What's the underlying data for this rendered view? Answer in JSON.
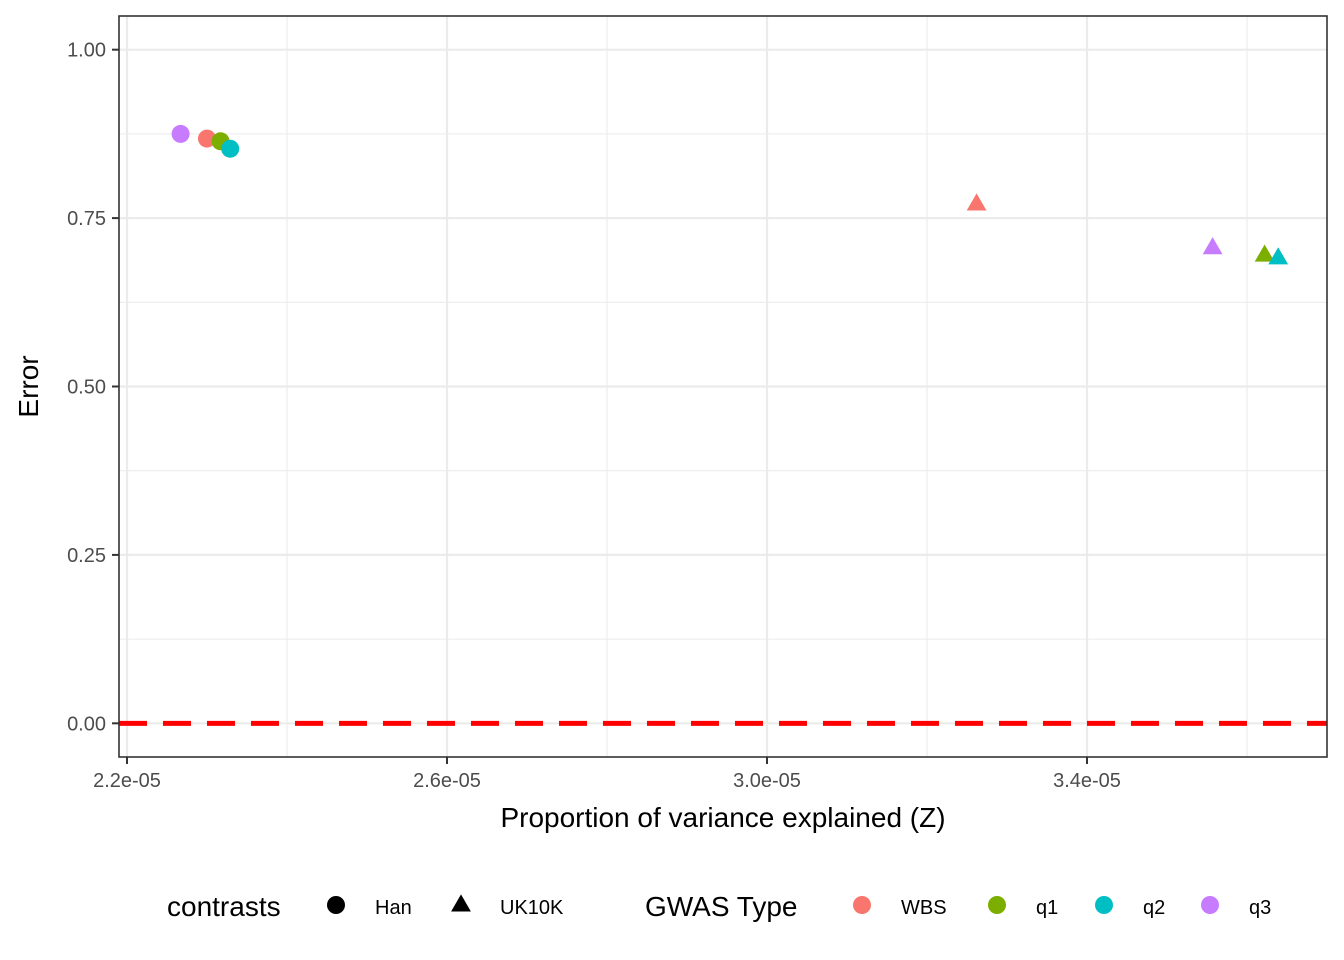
{
  "chart_data": {
    "type": "scatter",
    "title": "",
    "xlabel": "Proportion of variance explained (Z)",
    "ylabel": "Error",
    "xlim": [
      2.19e-05,
      3.7e-05
    ],
    "ylim": [
      -0.05,
      1.05
    ],
    "x_ticks": [
      2.2e-05,
      2.6e-05,
      3e-05,
      3.4e-05
    ],
    "x_tick_labels": [
      "2.2e-05",
      "2.6e-05",
      "3.0e-05",
      "3.4e-05"
    ],
    "x_minor_ticks": [
      2.4e-05,
      2.8e-05,
      3.2e-05,
      3.6e-05
    ],
    "y_ticks": [
      0,
      0.25,
      0.5,
      0.75,
      1
    ],
    "y_tick_labels": [
      "0.00",
      "0.25",
      "0.50",
      "0.75",
      "1.00"
    ],
    "y_minor_ticks": [
      0.125,
      0.375,
      0.625,
      0.875
    ],
    "grid": true,
    "reference_line": {
      "y": 0,
      "color": "#ff0000",
      "style": "dashed"
    },
    "series": [
      {
        "contrast": "Han",
        "gwas_type": "q3",
        "x": 2.267e-05,
        "y": 0.875
      },
      {
        "contrast": "Han",
        "gwas_type": "WBS",
        "x": 2.3e-05,
        "y": 0.868
      },
      {
        "contrast": "Han",
        "gwas_type": "q1",
        "x": 2.317e-05,
        "y": 0.864
      },
      {
        "contrast": "Han",
        "gwas_type": "q2",
        "x": 2.329e-05,
        "y": 0.853
      },
      {
        "contrast": "UK10K",
        "gwas_type": "WBS",
        "x": 3.262e-05,
        "y": 0.771
      },
      {
        "contrast": "UK10K",
        "gwas_type": "q3",
        "x": 3.557e-05,
        "y": 0.706
      },
      {
        "contrast": "UK10K",
        "gwas_type": "q1",
        "x": 3.622e-05,
        "y": 0.695
      },
      {
        "contrast": "UK10K",
        "gwas_type": "q2",
        "x": 3.639e-05,
        "y": 0.691
      }
    ],
    "legend": {
      "placement": "bottom",
      "shape_title": "contrasts",
      "shape_items": [
        {
          "label": "Han",
          "shape": "circle"
        },
        {
          "label": "UK10K",
          "shape": "triangle"
        }
      ],
      "color_title": "GWAS Type",
      "color_items": [
        {
          "label": "WBS",
          "color": "#f8766d"
        },
        {
          "label": "q1",
          "color": "#7cae00"
        },
        {
          "label": "q2",
          "color": "#00bfc4"
        },
        {
          "label": "q3",
          "color": "#c77cff"
        }
      ]
    }
  }
}
